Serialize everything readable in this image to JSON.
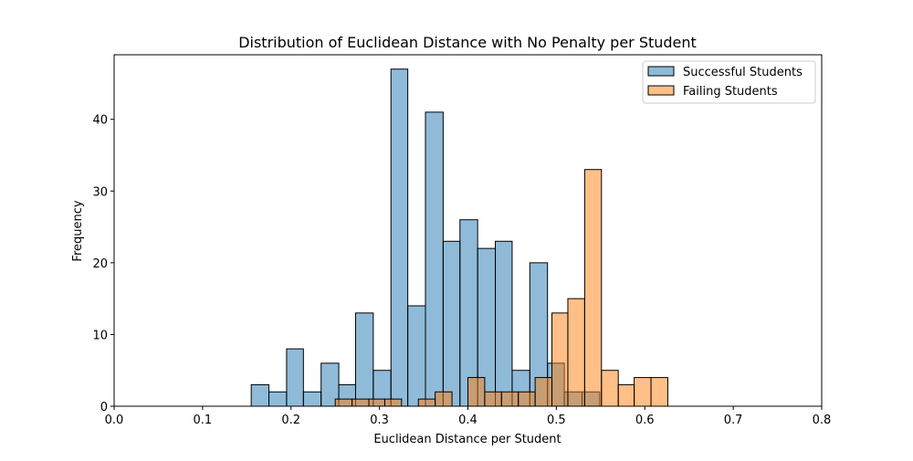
{
  "chart_data": {
    "type": "bar",
    "title": "Distribution of Euclidean Distance with No Penalty per Student",
    "xlabel": "Euclidean Distance per Student",
    "ylabel": "Frequency",
    "xlim": [
      0.0,
      0.8
    ],
    "ylim": [
      0,
      49
    ],
    "xticks": [
      "0.0",
      "0.1",
      "0.2",
      "0.3",
      "0.4",
      "0.5",
      "0.6",
      "0.7",
      "0.8"
    ],
    "yticks": [
      "0",
      "10",
      "20",
      "30",
      "40"
    ],
    "grid": false,
    "legend_placement": "top-right",
    "series": [
      {
        "name": "Successful Students",
        "color": "#1f77b4",
        "bins": [
          {
            "x0": 0.155,
            "x1": 0.175,
            "value": 3
          },
          {
            "x0": 0.175,
            "x1": 0.195,
            "value": 2
          },
          {
            "x0": 0.195,
            "x1": 0.214,
            "value": 8
          },
          {
            "x0": 0.214,
            "x1": 0.234,
            "value": 2
          },
          {
            "x0": 0.234,
            "x1": 0.254,
            "value": 6
          },
          {
            "x0": 0.254,
            "x1": 0.273,
            "value": 3
          },
          {
            "x0": 0.273,
            "x1": 0.293,
            "value": 13
          },
          {
            "x0": 0.293,
            "x1": 0.313,
            "value": 5
          },
          {
            "x0": 0.313,
            "x1": 0.332,
            "value": 47
          },
          {
            "x0": 0.332,
            "x1": 0.352,
            "value": 14
          },
          {
            "x0": 0.352,
            "x1": 0.372,
            "value": 41
          },
          {
            "x0": 0.372,
            "x1": 0.391,
            "value": 23
          },
          {
            "x0": 0.391,
            "x1": 0.411,
            "value": 26
          },
          {
            "x0": 0.411,
            "x1": 0.431,
            "value": 22
          },
          {
            "x0": 0.431,
            "x1": 0.45,
            "value": 23
          },
          {
            "x0": 0.45,
            "x1": 0.47,
            "value": 5
          },
          {
            "x0": 0.47,
            "x1": 0.49,
            "value": 20
          },
          {
            "x0": 0.49,
            "x1": 0.509,
            "value": 6
          },
          {
            "x0": 0.509,
            "x1": 0.529,
            "value": 2
          },
          {
            "x0": 0.529,
            "x1": 0.549,
            "value": 2
          }
        ]
      },
      {
        "name": "Failing Students",
        "color": "#ff7f0e",
        "bins": [
          {
            "x0": 0.25,
            "x1": 0.269,
            "value": 1
          },
          {
            "x0": 0.269,
            "x1": 0.288,
            "value": 1
          },
          {
            "x0": 0.288,
            "x1": 0.306,
            "value": 1
          },
          {
            "x0": 0.306,
            "x1": 0.325,
            "value": 1
          },
          {
            "x0": 0.344,
            "x1": 0.363,
            "value": 1
          },
          {
            "x0": 0.363,
            "x1": 0.382,
            "value": 2
          },
          {
            "x0": 0.4,
            "x1": 0.419,
            "value": 4
          },
          {
            "x0": 0.419,
            "x1": 0.438,
            "value": 2
          },
          {
            "x0": 0.438,
            "x1": 0.457,
            "value": 2
          },
          {
            "x0": 0.457,
            "x1": 0.476,
            "value": 2
          },
          {
            "x0": 0.476,
            "x1": 0.495,
            "value": 4
          },
          {
            "x0": 0.495,
            "x1": 0.513,
            "value": 13
          },
          {
            "x0": 0.513,
            "x1": 0.532,
            "value": 15
          },
          {
            "x0": 0.532,
            "x1": 0.551,
            "value": 33
          },
          {
            "x0": 0.551,
            "x1": 0.57,
            "value": 5
          },
          {
            "x0": 0.57,
            "x1": 0.588,
            "value": 3
          },
          {
            "x0": 0.588,
            "x1": 0.607,
            "value": 4
          },
          {
            "x0": 0.607,
            "x1": 0.626,
            "value": 4
          }
        ]
      }
    ]
  }
}
